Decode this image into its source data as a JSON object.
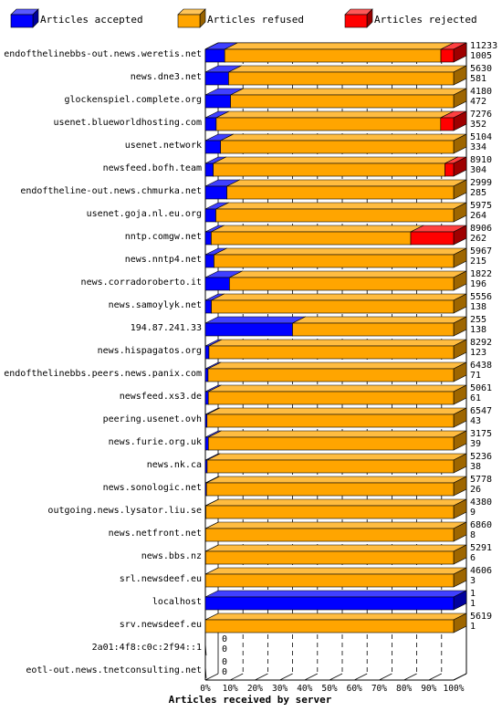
{
  "chart_data": {
    "type": "bar",
    "orientation": "horizontal",
    "stacked": true,
    "style": "3d",
    "xlabel": "Articles received by server",
    "xlim": [
      0,
      100
    ],
    "x_unit": "%",
    "x_ticks": [
      "0%",
      "10%",
      "20%",
      "30%",
      "40%",
      "50%",
      "60%",
      "70%",
      "80%",
      "90%",
      "100%"
    ],
    "grid": "vertical dashed",
    "legend_position": "top",
    "legend": [
      {
        "label": "Articles accepted",
        "color": "#0000ff"
      },
      {
        "label": "Articles refused",
        "color": "#ffa500"
      },
      {
        "label": "Articles rejected",
        "color": "#ff0000"
      }
    ],
    "rows": [
      {
        "server": "endofthelinebbs-out.news.weretis.net",
        "accepted": 1005,
        "refused": 11233,
        "rejected": 662,
        "label_top": "11233",
        "label_bottom": "1005"
      },
      {
        "server": "news.dne3.net",
        "accepted": 581,
        "refused": 5630,
        "rejected": 0,
        "label_top": "5630",
        "label_bottom": "581"
      },
      {
        "server": "glockenspiel.complete.org",
        "accepted": 472,
        "refused": 4180,
        "rejected": 0,
        "label_top": "4180",
        "label_bottom": "472"
      },
      {
        "server": "usenet.blueworldhosting.com",
        "accepted": 352,
        "refused": 7276,
        "rejected": 420,
        "label_top": "7276",
        "label_bottom": "352"
      },
      {
        "server": "usenet.network",
        "accepted": 334,
        "refused": 5104,
        "rejected": 0,
        "label_top": "5104",
        "label_bottom": "334"
      },
      {
        "server": "newsfeed.bofh.team",
        "accepted": 304,
        "refused": 8910,
        "rejected": 334,
        "label_top": "8910",
        "label_bottom": "304"
      },
      {
        "server": "endoftheline-out.news.chmurka.net",
        "accepted": 285,
        "refused": 2999,
        "rejected": 0,
        "label_top": "2999",
        "label_bottom": "285"
      },
      {
        "server": "usenet.goja.nl.eu.org",
        "accepted": 264,
        "refused": 5975,
        "rejected": 0,
        "label_top": "5975",
        "label_bottom": "264"
      },
      {
        "server": "nntp.comgw.net",
        "accepted": 262,
        "refused": 8906,
        "rejected": 1915,
        "label_top": "8906",
        "label_bottom": "262"
      },
      {
        "server": "news.nntp4.net",
        "accepted": 215,
        "refused": 5967,
        "rejected": 0,
        "label_top": "5967",
        "label_bottom": "215"
      },
      {
        "server": "news.corradoroberto.it",
        "accepted": 196,
        "refused": 1822,
        "rejected": 0,
        "label_top": "1822",
        "label_bottom": "196"
      },
      {
        "server": "news.samoylyk.net",
        "accepted": 138,
        "refused": 5556,
        "rejected": 0,
        "label_top": "5556",
        "label_bottom": "138"
      },
      {
        "server": "194.87.241.33",
        "accepted": 138,
        "refused": 255,
        "rejected": 0,
        "label_top": "255",
        "label_bottom": "138"
      },
      {
        "server": "news.hispagatos.org",
        "accepted": 123,
        "refused": 8292,
        "rejected": 0,
        "label_top": "8292",
        "label_bottom": "123"
      },
      {
        "server": "endofthelinebbs.peers.news.panix.com",
        "accepted": 71,
        "refused": 6438,
        "rejected": 0,
        "label_top": "6438",
        "label_bottom": "71"
      },
      {
        "server": "newsfeed.xs3.de",
        "accepted": 61,
        "refused": 5061,
        "rejected": 0,
        "label_top": "5061",
        "label_bottom": "61"
      },
      {
        "server": "peering.usenet.ovh",
        "accepted": 43,
        "refused": 6547,
        "rejected": 0,
        "label_top": "6547",
        "label_bottom": "43"
      },
      {
        "server": "news.furie.org.uk",
        "accepted": 39,
        "refused": 3175,
        "rejected": 0,
        "label_top": "3175",
        "label_bottom": "39"
      },
      {
        "server": "news.nk.ca",
        "accepted": 38,
        "refused": 5236,
        "rejected": 0,
        "label_top": "5236",
        "label_bottom": "38"
      },
      {
        "server": "news.sonologic.net",
        "accepted": 26,
        "refused": 5778,
        "rejected": 0,
        "label_top": "5778",
        "label_bottom": "26"
      },
      {
        "server": "outgoing.news.lysator.liu.se",
        "accepted": 9,
        "refused": 4380,
        "rejected": 0,
        "label_top": "4380",
        "label_bottom": "9"
      },
      {
        "server": "news.netfront.net",
        "accepted": 8,
        "refused": 6860,
        "rejected": 0,
        "label_top": "6860",
        "label_bottom": "8"
      },
      {
        "server": "news.bbs.nz",
        "accepted": 6,
        "refused": 5291,
        "rejected": 0,
        "label_top": "5291",
        "label_bottom": "6"
      },
      {
        "server": "srl.newsdeef.eu",
        "accepted": 3,
        "refused": 4606,
        "rejected": 0,
        "label_top": "4606",
        "label_bottom": "3"
      },
      {
        "server": "localhost",
        "accepted": 1,
        "refused": 0,
        "rejected": 0,
        "label_top": "1",
        "label_bottom": "1"
      },
      {
        "server": "srv.newsdeef.eu",
        "accepted": 1,
        "refused": 5619,
        "rejected": 0,
        "label_top": "5619",
        "label_bottom": "1"
      },
      {
        "server": "2a01:4f8:c0c:2f94::1",
        "accepted": 0,
        "refused": 0,
        "rejected": 0,
        "label_top": "0",
        "label_bottom": "0"
      },
      {
        "server": "eotl-out.news.tnetconsulting.net",
        "accepted": 0,
        "refused": 0,
        "rejected": 0,
        "label_top": "0",
        "label_bottom": "0"
      }
    ]
  }
}
